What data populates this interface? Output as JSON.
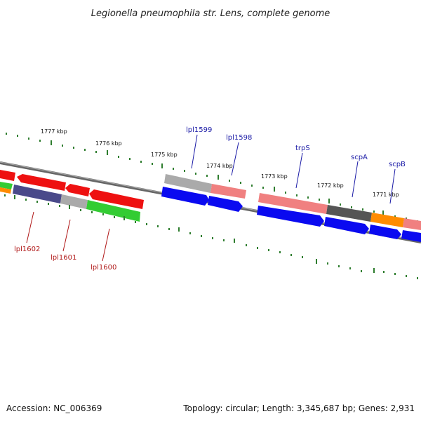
{
  "title": "Legionella pneumophila str. Lens, complete genome",
  "footer": {
    "accession": "Accession: NC_006369",
    "summary": "Topology: circular; Length: 3,345,687 bp; Genes: 2,931"
  },
  "kbp_labels": [
    "1777 kbp",
    "1776 kbp",
    "1775 kbp",
    "1774 kbp",
    "1773 kbp",
    "1772 kbp",
    "1771 kbp"
  ],
  "genes_upper": [
    "lpl1599",
    "lpl1598",
    "trpS",
    "scpA",
    "scpB"
  ],
  "genes_lower": [
    "lpl1602",
    "lpl1601",
    "lpl1600"
  ],
  "colors": {
    "forward": "#0a0af0",
    "reverse_red": "#ee1111",
    "pink": "#f08080",
    "gray": "#aaaaaa",
    "dark_gray": "#555555",
    "green": "#33cc33",
    "purple": "#4a4a8a",
    "orange": "#ff8c00",
    "backbone": "#777777",
    "tick": "#2e7d2e"
  }
}
